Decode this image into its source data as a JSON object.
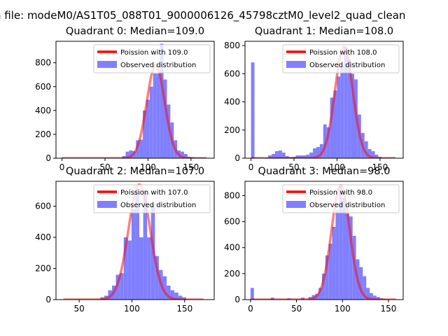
{
  "figure": {
    "suptitle": "n file: modeM0/AS1T05_088T01_9000006126_45798cztM0_level2_quad_clean"
  },
  "colors": {
    "fit_line": "#ff0000",
    "histogram": "#8080ff",
    "axes": "#000000",
    "background": "#ffffff"
  },
  "chart_data": [
    {
      "type": "bar",
      "title": "Quadrant 0: Median=109.0",
      "xlabel": "",
      "ylabel": "",
      "xlim": [
        -7,
        177
      ],
      "ylim": [
        0,
        980
      ],
      "xticks": [
        0,
        50,
        100,
        150
      ],
      "yticks": [
        0,
        200,
        400,
        600,
        800
      ],
      "bin_width": 4,
      "grid": false,
      "legend_position": "top-right",
      "legend": [
        "Poission with 109.0",
        "Observed distribution"
      ],
      "poisson": {
        "name": "Poission with 109.0",
        "mean": 109,
        "peak": 780,
        "x_range": [
          0,
          168
        ]
      },
      "bins": [
        [
          70,
          18
        ],
        [
          74,
          55
        ],
        [
          78,
          65
        ],
        [
          82,
          60
        ],
        [
          86,
          150
        ],
        [
          90,
          155
        ],
        [
          94,
          400
        ],
        [
          98,
          490
        ],
        [
          102,
          600
        ],
        [
          106,
          710
        ],
        [
          110,
          710
        ],
        [
          114,
          960
        ],
        [
          118,
          660
        ],
        [
          122,
          450
        ],
        [
          126,
          300
        ],
        [
          130,
          150
        ],
        [
          134,
          65
        ],
        [
          138,
          55
        ],
        [
          142,
          35
        ],
        [
          146,
          12
        ],
        [
          150,
          8
        ]
      ]
    },
    {
      "type": "bar",
      "title": "Quadrant 1: Median=108.0",
      "xlabel": "",
      "ylabel": "",
      "xlim": [
        -7,
        177
      ],
      "ylim": [
        0,
        830
      ],
      "xticks": [
        0,
        50,
        100,
        150
      ],
      "yticks": [
        0,
        200,
        400,
        600,
        800
      ],
      "bin_width": 4,
      "grid": false,
      "legend_position": "top-right",
      "legend": [
        "Poission with 108.0",
        "Observed distribution"
      ],
      "poisson": {
        "name": "Poission with 108.0",
        "mean": 108,
        "peak": 790,
        "x_range": [
          0,
          168
        ]
      },
      "bins": [
        [
          0,
          680
        ],
        [
          20,
          20
        ],
        [
          24,
          30
        ],
        [
          28,
          50
        ],
        [
          32,
          55
        ],
        [
          36,
          40
        ],
        [
          40,
          15
        ],
        [
          44,
          8
        ],
        [
          48,
          10
        ],
        [
          52,
          20
        ],
        [
          56,
          20
        ],
        [
          60,
          20
        ],
        [
          64,
          25
        ],
        [
          68,
          40
        ],
        [
          72,
          70
        ],
        [
          76,
          80
        ],
        [
          80,
          100
        ],
        [
          84,
          240
        ],
        [
          88,
          220
        ],
        [
          92,
          430
        ],
        [
          96,
          480
        ],
        [
          100,
          580
        ],
        [
          104,
          650
        ],
        [
          108,
          790
        ],
        [
          112,
          700
        ],
        [
          116,
          600
        ],
        [
          120,
          560
        ],
        [
          124,
          310
        ],
        [
          128,
          180
        ],
        [
          132,
          120
        ],
        [
          136,
          65
        ],
        [
          140,
          50
        ],
        [
          144,
          25
        ],
        [
          148,
          10
        ]
      ]
    },
    {
      "type": "bar",
      "title": "Quadrant 2: Median=107.0",
      "xlabel": "",
      "ylabel": "",
      "xlim": [
        28,
        178
      ],
      "ylim": [
        0,
        760
      ],
      "xticks": [
        50,
        100,
        150
      ],
      "yticks": [
        0,
        200,
        400,
        600
      ],
      "bin_width": 3.7,
      "grid": false,
      "legend_position": "top-right",
      "legend": [
        "Poission with 107.0",
        "Observed distribution"
      ],
      "poisson": {
        "name": "Poission with 107.0",
        "mean": 107,
        "peak": 740,
        "x_range": [
          35,
          168
        ]
      },
      "bins": [
        [
          70,
          15
        ],
        [
          73.7,
          25
        ],
        [
          77.4,
          60
        ],
        [
          81.1,
          90
        ],
        [
          84.8,
          160
        ],
        [
          88.5,
          170
        ],
        [
          92.2,
          400
        ],
        [
          95.9,
          380
        ],
        [
          99.6,
          580
        ],
        [
          103.3,
          710
        ],
        [
          107,
          400
        ],
        [
          110.7,
          700
        ],
        [
          114.4,
          400
        ],
        [
          118.1,
          610
        ],
        [
          121.8,
          280
        ],
        [
          125.5,
          190
        ],
        [
          129.2,
          150
        ],
        [
          132.9,
          90
        ],
        [
          136.6,
          60
        ],
        [
          140.3,
          45
        ],
        [
          144,
          25
        ],
        [
          147.7,
          15
        ]
      ]
    },
    {
      "type": "bar",
      "title": "Quadrant 3: Median=98.0",
      "xlabel": "",
      "ylabel": "",
      "xlim": [
        -6,
        166
      ],
      "ylim": [
        0,
        910
      ],
      "xticks": [
        0,
        50,
        100,
        150
      ],
      "yticks": [
        0,
        200,
        400,
        600,
        800
      ],
      "bin_width": 3.7,
      "grid": false,
      "legend_position": "top-right",
      "legend": [
        "Poission with 98.0",
        "Observed distribution"
      ],
      "poisson": {
        "name": "Poission with 98.0",
        "mean": 98,
        "peak": 880,
        "x_range": [
          0,
          158
        ]
      },
      "bins": [
        [
          0,
          90
        ],
        [
          22,
          15
        ],
        [
          40,
          10
        ],
        [
          55,
          15
        ],
        [
          62.9,
          20
        ],
        [
          66.6,
          35
        ],
        [
          70.3,
          45
        ],
        [
          74,
          90
        ],
        [
          77.7,
          200
        ],
        [
          81.4,
          340
        ],
        [
          85.1,
          430
        ],
        [
          88.8,
          560
        ],
        [
          92.5,
          690
        ],
        [
          96.2,
          880
        ],
        [
          99.9,
          780
        ],
        [
          103.6,
          660
        ],
        [
          107.3,
          640
        ],
        [
          111,
          490
        ],
        [
          114.7,
          310
        ],
        [
          118.4,
          250
        ],
        [
          122.1,
          180
        ],
        [
          125.8,
          90
        ],
        [
          129.5,
          50
        ],
        [
          133.2,
          30
        ],
        [
          136.9,
          20
        ],
        [
          140.6,
          10
        ],
        [
          144.3,
          5
        ]
      ]
    }
  ]
}
